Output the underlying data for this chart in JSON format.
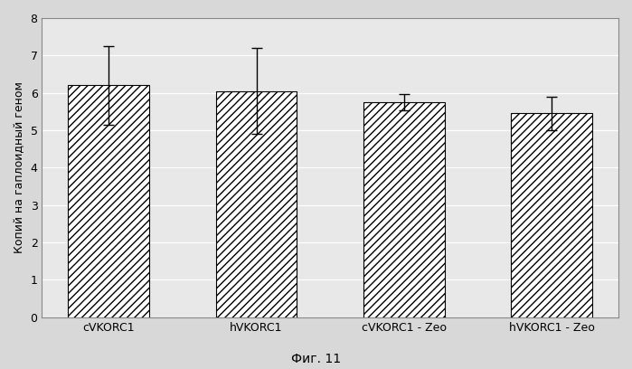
{
  "categories": [
    "cVKORC1",
    "hVKORC1",
    "cVKORC1 - Zeo",
    "hVKORC1 - Zeo"
  ],
  "values": [
    6.2,
    6.05,
    5.75,
    5.45
  ],
  "errors": [
    1.05,
    1.15,
    0.22,
    0.45
  ],
  "ylabel": "Копий на гаплоидный геном",
  "caption": "Фиг. 11",
  "ylim": [
    0,
    8
  ],
  "yticks": [
    0,
    1,
    2,
    3,
    4,
    5,
    6,
    7,
    8
  ],
  "bar_color": "#ffffff",
  "bar_edgecolor": "#000000",
  "hatch": "////",
  "plot_bg_color": "#e8e8e8",
  "fig_bg_color": "#d8d8d8",
  "bar_width": 0.55,
  "figsize": [
    6.99,
    4.08
  ],
  "dpi": 100,
  "label_fontsize": 9,
  "tick_fontsize": 9,
  "caption_fontsize": 10,
  "grid_color": "#ffffff",
  "spine_color": "#888888"
}
